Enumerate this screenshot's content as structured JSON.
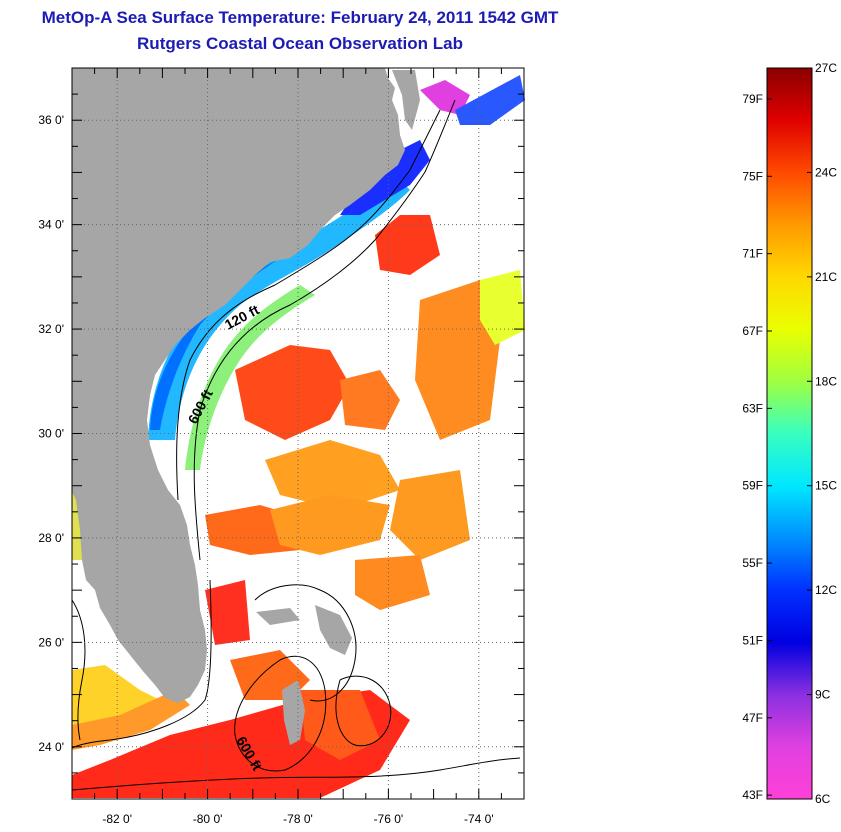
{
  "header": {
    "title": "MetOp-A Sea Surface Temperature:  February 24, 2011 1542 GMT",
    "subtitle": "Rutgers Coastal Ocean Observation Lab"
  },
  "map": {
    "lon_range": [
      -83,
      -73
    ],
    "lat_range": [
      23,
      37
    ],
    "lon_ticks": [
      {
        "value": -82,
        "label": "-82 0'"
      },
      {
        "value": -80,
        "label": "-80 0'"
      },
      {
        "value": -78,
        "label": "-78 0'"
      },
      {
        "value": -76,
        "label": "-76 0'"
      },
      {
        "value": -74,
        "label": "-74 0'"
      }
    ],
    "lat_ticks": [
      {
        "value": 36,
        "label": "36 0'"
      },
      {
        "value": 34,
        "label": "34 0'"
      },
      {
        "value": 32,
        "label": "32 0'"
      },
      {
        "value": 30,
        "label": "30 0'"
      },
      {
        "value": 28,
        "label": "28 0'"
      },
      {
        "value": 26,
        "label": "26 0'"
      },
      {
        "value": 24,
        "label": "24 0'"
      }
    ],
    "grid": "dotted",
    "contour_labels": [
      "120 ft",
      "600 ft",
      "600 ft"
    ],
    "colors": {
      "land": "#a6a6a6",
      "frame": "#000000"
    }
  },
  "colorbar": {
    "min_c": 6,
    "max_c": 27,
    "celsius_ticks": [
      {
        "value": 27,
        "label": "27C"
      },
      {
        "value": 24,
        "label": "24C"
      },
      {
        "value": 21,
        "label": "21C"
      },
      {
        "value": 18,
        "label": "18C"
      },
      {
        "value": 15,
        "label": "15C"
      },
      {
        "value": 12,
        "label": "12C"
      },
      {
        "value": 9,
        "label": "9C"
      },
      {
        "value": 6,
        "label": "6C"
      }
    ],
    "fahrenheit_ticks": [
      {
        "value": 79,
        "label": "79F"
      },
      {
        "value": 75,
        "label": "75F"
      },
      {
        "value": 71,
        "label": "71F"
      },
      {
        "value": 67,
        "label": "67F"
      },
      {
        "value": 63,
        "label": "63F"
      },
      {
        "value": 59,
        "label": "59F"
      },
      {
        "value": 55,
        "label": "55F"
      },
      {
        "value": 51,
        "label": "51F"
      },
      {
        "value": 47,
        "label": "47F"
      },
      {
        "value": 43,
        "label": "43F"
      }
    ],
    "gradient": [
      "#8b0000",
      "#e00000",
      "#ff4a00",
      "#ff9900",
      "#ffd800",
      "#eaff00",
      "#a0ff40",
      "#38ffc0",
      "#00e8ff",
      "#0090ff",
      "#0030ff",
      "#0000e0",
      "#8a30e0",
      "#e040e0",
      "#ff40d8"
    ]
  }
}
